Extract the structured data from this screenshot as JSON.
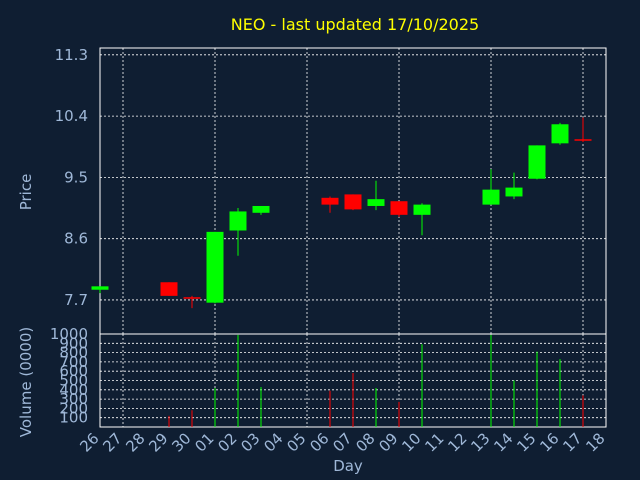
{
  "chart_data": {
    "type": "candlestick",
    "title": "NEO - last updated 17/10/2025",
    "xlabel": "Day",
    "x_ticks": [
      "26",
      "27",
      "28",
      "29",
      "30",
      "01",
      "02",
      "03",
      "04",
      "05",
      "06",
      "07",
      "08",
      "09",
      "10",
      "11",
      "12",
      "13",
      "14",
      "15",
      "16",
      "17",
      "18"
    ],
    "price": {
      "ylabel": "Price",
      "ylim": [
        7.2,
        11.4
      ],
      "yticks": [
        "7.7",
        "8.6",
        "9.5",
        "10.4",
        "11.3"
      ],
      "candles": [
        {
          "day": "26",
          "open": 7.85,
          "high": 7.9,
          "low": 7.8,
          "close": 7.9
        },
        {
          "day": "29",
          "open": 7.96,
          "high": 7.96,
          "low": 7.76,
          "close": 7.76
        },
        {
          "day": "30",
          "open": 7.74,
          "high": 7.76,
          "low": 7.58,
          "close": 7.73
        },
        {
          "day": "01",
          "open": 7.66,
          "high": 8.7,
          "low": 7.65,
          "close": 8.7
        },
        {
          "day": "02",
          "open": 8.72,
          "high": 9.05,
          "low": 8.35,
          "close": 9.0
        },
        {
          "day": "03",
          "open": 8.98,
          "high": 9.08,
          "low": 8.95,
          "close": 9.08
        },
        {
          "day": "06",
          "open": 9.2,
          "high": 9.22,
          "low": 8.98,
          "close": 9.1
        },
        {
          "day": "07",
          "open": 9.25,
          "high": 9.25,
          "low": 9.02,
          "close": 9.03
        },
        {
          "day": "08",
          "open": 9.08,
          "high": 9.45,
          "low": 9.02,
          "close": 9.18
        },
        {
          "day": "09",
          "open": 9.15,
          "high": 9.15,
          "low": 8.92,
          "close": 8.95
        },
        {
          "day": "10",
          "open": 8.95,
          "high": 9.12,
          "low": 8.65,
          "close": 9.1
        },
        {
          "day": "13",
          "open": 9.1,
          "high": 9.62,
          "low": 9.1,
          "close": 9.32
        },
        {
          "day": "14",
          "open": 9.22,
          "high": 9.57,
          "low": 9.18,
          "close": 9.35
        },
        {
          "day": "15",
          "open": 9.48,
          "high": 9.97,
          "low": 9.47,
          "close": 9.97
        },
        {
          "day": "16",
          "open": 10.0,
          "high": 10.3,
          "low": 9.98,
          "close": 10.28
        },
        {
          "day": "17",
          "open": 10.06,
          "high": 10.38,
          "low": 10.02,
          "close": 10.04
        }
      ]
    },
    "volume": {
      "ylabel": "Volume (0000)",
      "ylim": [
        0,
        1000
      ],
      "yticks": [
        "100",
        "200",
        "300",
        "400",
        "500",
        "600",
        "700",
        "800",
        "900",
        "1000"
      ],
      "bars": [
        {
          "day": "29",
          "value": 120,
          "color": "down"
        },
        {
          "day": "30",
          "value": 180,
          "color": "down"
        },
        {
          "day": "01",
          "value": 420,
          "color": "up"
        },
        {
          "day": "02",
          "value": 990,
          "color": "up"
        },
        {
          "day": "03",
          "value": 430,
          "color": "up"
        },
        {
          "day": "06",
          "value": 390,
          "color": "down"
        },
        {
          "day": "07",
          "value": 580,
          "color": "down"
        },
        {
          "day": "08",
          "value": 420,
          "color": "up"
        },
        {
          "day": "09",
          "value": 270,
          "color": "down"
        },
        {
          "day": "10",
          "value": 890,
          "color": "up"
        },
        {
          "day": "13",
          "value": 990,
          "color": "up"
        },
        {
          "day": "14",
          "value": 500,
          "color": "up"
        },
        {
          "day": "15",
          "value": 810,
          "color": "up"
        },
        {
          "day": "16",
          "value": 730,
          "color": "up"
        },
        {
          "day": "17",
          "value": 340,
          "color": "down"
        }
      ]
    },
    "colors": {
      "background": "#0f1e32",
      "up": "#00ff00",
      "down": "#ff0000",
      "grid": "#ffffff",
      "text": "#9fb8d8",
      "title": "#ffff00"
    },
    "grid": true
  }
}
